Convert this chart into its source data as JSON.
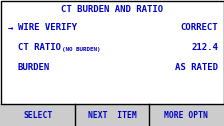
{
  "title": "CT BURDEN AND RATIO",
  "rows": [
    {
      "arrow": true,
      "label": "WIRE VERIFY",
      "sublabel": null,
      "value": "CORRECT"
    },
    {
      "arrow": false,
      "label": "CT RATIO",
      "sublabel": "(NO BURDEN)",
      "value": "212.4"
    },
    {
      "arrow": false,
      "label": "BURDEN",
      "sublabel": null,
      "value": "AS RATED"
    }
  ],
  "buttons": [
    "SELECT",
    "NEXT  ITEM",
    "MORE OPTN"
  ],
  "bg_color": "#ffffff",
  "border_color": "#000000",
  "title_color": "#0000cc",
  "text_color": "#0000cc",
  "sublabel_color": "#0000cc",
  "button_bg": "#cccccc",
  "button_text_color": "#0000cc",
  "button_border_color": "#000000",
  "divider_color": "#000000",
  "title_fontsize": 6.5,
  "label_fontsize": 6.5,
  "sublabel_fontsize": 4.2,
  "value_fontsize": 6.5,
  "button_fontsize": 5.8,
  "arrow_fontsize": 6.5
}
